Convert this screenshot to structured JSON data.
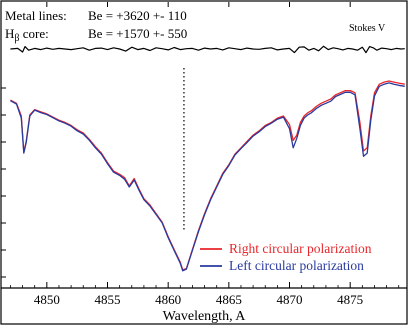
{
  "chart_data": {
    "type": "line",
    "title": "",
    "xlabel": "Wavelength, A",
    "ylabel": "",
    "xlim": [
      4846.8,
      4879.6
    ],
    "ylim": [
      0.0,
      1.0
    ],
    "xticks": [
      4850,
      4855,
      4860,
      4865,
      4870,
      4875
    ],
    "xtick_labels": [
      "4850",
      "4855",
      "4860",
      "4865",
      "4870",
      "4875"
    ],
    "annotations": {
      "metal_label": "Metal lines:",
      "metal_value": "Be = +3620 +- 110",
      "hbeta_label_main": "H",
      "hbeta_label_sub": "β",
      "hbeta_label_rest": " core:",
      "hbeta_value": "Be = +1570 +- 550",
      "stokes_label": "Stokes V"
    },
    "marker_line_x": 4861.3,
    "legend": {
      "position": "bottom-right",
      "entries": [
        {
          "name": "Right circular polarization",
          "color": "#e8262b"
        },
        {
          "name": "Left circular polarization",
          "color": "#2a3a9e"
        }
      ]
    },
    "colors": {
      "right": "#e8262b",
      "left": "#2a3a9e",
      "stokes": "#000000",
      "frame": "#000000"
    },
    "series": [
      {
        "name": "Right circular polarization",
        "x": [
          4847.0,
          4847.5,
          4847.9,
          4848.1,
          4848.3,
          4848.6,
          4849.0,
          4849.5,
          4850.0,
          4850.5,
          4851.0,
          4851.5,
          4852.0,
          4852.5,
          4853.0,
          4853.5,
          4854.0,
          4854.5,
          4855.0,
          4855.5,
          4856.0,
          4856.4,
          4856.8,
          4857.2,
          4857.6,
          4858.0,
          4858.5,
          4859.0,
          4859.5,
          4860.0,
          4860.5,
          4861.0,
          4861.2,
          4861.5,
          4862.0,
          4862.5,
          4863.0,
          4863.5,
          4864.0,
          4864.5,
          4865.0,
          4865.5,
          4866.0,
          4866.5,
          4867.0,
          4867.5,
          4868.0,
          4868.5,
          4869.0,
          4869.5,
          4870.0,
          4870.3,
          4870.6,
          4870.9,
          4871.2,
          4871.5,
          4871.8,
          4872.2,
          4872.6,
          4873.0,
          4873.4,
          4873.8,
          4874.2,
          4874.6,
          4875.0,
          4875.4,
          4875.8,
          4876.1,
          4876.4,
          4876.7,
          4877.0,
          4877.4,
          4877.8,
          4878.2,
          4878.6,
          4879.0,
          4879.5
        ],
        "y": [
          0.825,
          0.81,
          0.75,
          0.58,
          0.63,
          0.755,
          0.78,
          0.77,
          0.76,
          0.745,
          0.73,
          0.72,
          0.705,
          0.685,
          0.67,
          0.64,
          0.605,
          0.575,
          0.53,
          0.49,
          0.475,
          0.46,
          0.42,
          0.455,
          0.405,
          0.36,
          0.33,
          0.29,
          0.25,
          0.18,
          0.12,
          0.06,
          0.025,
          0.03,
          0.12,
          0.21,
          0.29,
          0.36,
          0.42,
          0.48,
          0.52,
          0.57,
          0.6,
          0.63,
          0.66,
          0.68,
          0.705,
          0.72,
          0.74,
          0.75,
          0.71,
          0.635,
          0.66,
          0.72,
          0.75,
          0.765,
          0.775,
          0.795,
          0.81,
          0.82,
          0.83,
          0.85,
          0.86,
          0.87,
          0.87,
          0.86,
          0.72,
          0.585,
          0.6,
          0.75,
          0.86,
          0.9,
          0.91,
          0.915,
          0.91,
          0.905,
          0.9
        ]
      },
      {
        "name": "Left circular polarization",
        "x": [
          4847.0,
          4847.5,
          4847.9,
          4848.1,
          4848.3,
          4848.6,
          4849.0,
          4849.5,
          4850.0,
          4850.5,
          4851.0,
          4851.5,
          4852.0,
          4852.5,
          4853.0,
          4853.5,
          4854.0,
          4854.5,
          4855.0,
          4855.5,
          4856.0,
          4856.4,
          4856.8,
          4857.2,
          4857.6,
          4858.0,
          4858.5,
          4859.0,
          4859.5,
          4860.0,
          4860.5,
          4861.0,
          4861.2,
          4861.5,
          4862.0,
          4862.5,
          4863.0,
          4863.5,
          4864.0,
          4864.5,
          4865.0,
          4865.5,
          4866.0,
          4866.5,
          4867.0,
          4867.5,
          4868.0,
          4868.5,
          4869.0,
          4869.5,
          4870.0,
          4870.3,
          4870.6,
          4870.9,
          4871.2,
          4871.5,
          4871.8,
          4872.2,
          4872.6,
          4873.0,
          4873.4,
          4873.8,
          4874.2,
          4874.6,
          4875.0,
          4875.4,
          4875.8,
          4876.1,
          4876.4,
          4876.7,
          4877.0,
          4877.4,
          4877.8,
          4878.2,
          4878.6,
          4879.0,
          4879.5
        ],
        "y": [
          0.822,
          0.806,
          0.74,
          0.575,
          0.625,
          0.75,
          0.778,
          0.766,
          0.757,
          0.742,
          0.727,
          0.716,
          0.702,
          0.68,
          0.665,
          0.636,
          0.6,
          0.57,
          0.525,
          0.485,
          0.47,
          0.452,
          0.415,
          0.448,
          0.4,
          0.355,
          0.325,
          0.286,
          0.246,
          0.176,
          0.115,
          0.055,
          0.02,
          0.028,
          0.116,
          0.205,
          0.285,
          0.355,
          0.415,
          0.475,
          0.516,
          0.566,
          0.596,
          0.625,
          0.655,
          0.676,
          0.7,
          0.716,
          0.735,
          0.745,
          0.69,
          0.6,
          0.645,
          0.705,
          0.74,
          0.755,
          0.765,
          0.785,
          0.8,
          0.81,
          0.82,
          0.842,
          0.852,
          0.862,
          0.862,
          0.85,
          0.69,
          0.56,
          0.575,
          0.73,
          0.845,
          0.89,
          0.9,
          0.906,
          0.9,
          0.895,
          0.89
        ]
      },
      {
        "name": "Stokes V",
        "x": [
          4847.0,
          4847.6,
          4848.0,
          4848.2,
          4848.5,
          4849.0,
          4849.5,
          4850.0,
          4850.5,
          4851.0,
          4851.5,
          4852.0,
          4852.5,
          4853.0,
          4853.5,
          4854.0,
          4854.5,
          4855.0,
          4855.5,
          4856.0,
          4856.5,
          4857.0,
          4857.5,
          4858.0,
          4858.5,
          4859.0,
          4859.5,
          4860.0,
          4860.5,
          4861.0,
          4861.5,
          4862.0,
          4862.5,
          4863.0,
          4863.5,
          4864.0,
          4864.5,
          4865.0,
          4865.5,
          4866.0,
          4866.5,
          4867.0,
          4867.5,
          4868.0,
          4868.5,
          4869.0,
          4869.5,
          4870.0,
          4870.4,
          4870.8,
          4871.2,
          4871.6,
          4872.0,
          4872.4,
          4872.8,
          4873.2,
          4873.6,
          4874.0,
          4874.4,
          4874.8,
          4875.2,
          4875.6,
          4876.0,
          4876.3,
          4876.6,
          4876.9,
          4877.2,
          4877.6,
          4878.0,
          4878.4,
          4878.8,
          4879.2,
          4879.5
        ],
        "y": [
          0.0,
          0.1,
          -0.5,
          0.4,
          -0.2,
          0.1,
          -0.1,
          0.15,
          -0.05,
          0.1,
          0.0,
          -0.1,
          0.05,
          0.2,
          -0.2,
          0.1,
          0.15,
          -0.1,
          0.2,
          0.0,
          -0.35,
          0.3,
          -0.1,
          0.1,
          -0.25,
          0.2,
          0.05,
          -0.15,
          0.25,
          -0.1,
          0.05,
          0.1,
          -0.2,
          0.15,
          0.0,
          0.1,
          -0.15,
          0.2,
          0.05,
          -0.1,
          0.15,
          0.0,
          -0.05,
          0.1,
          0.2,
          -0.15,
          0.0,
          0.1,
          -0.6,
          0.3,
          0.35,
          -0.2,
          0.1,
          -0.3,
          0.45,
          -0.1,
          0.2,
          0.05,
          -0.15,
          0.1,
          0.0,
          -0.2,
          0.3,
          -0.6,
          0.4,
          0.2,
          -0.2,
          0.15,
          0.05,
          -0.1,
          0.1,
          0.0,
          0.05
        ]
      }
    ]
  }
}
